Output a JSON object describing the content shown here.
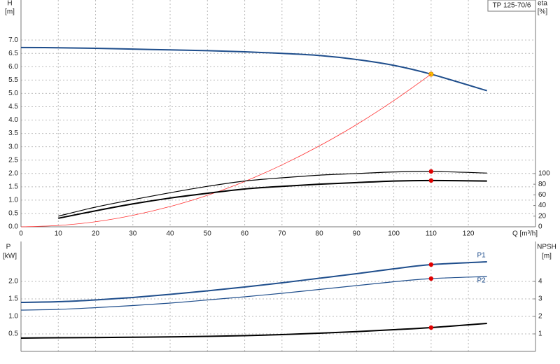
{
  "chart_data": [
    {
      "type": "line",
      "title": "TP 125-70/6",
      "xlabel": "Q [m³/h]",
      "ylabel": [
        "H",
        "[m]"
      ],
      "y2label": [
        "eta",
        "[%]"
      ],
      "x": [
        0,
        10,
        20,
        30,
        40,
        50,
        60,
        70,
        80,
        90,
        100,
        110,
        125
      ],
      "xlim": [
        0,
        138
      ],
      "xticks": [
        0,
        10,
        20,
        30,
        40,
        50,
        60,
        70,
        80,
        90,
        100,
        110,
        120
      ],
      "ylim": [
        0,
        8.5
      ],
      "yticks": [
        {
          "value": 0,
          "label": "0.0"
        },
        0.5,
        {
          "value": 1,
          "label": "1.0"
        },
        1.5,
        {
          "value": 2,
          "label": "2.0"
        },
        2.5,
        {
          "value": 3,
          "label": "3.0"
        },
        3.5,
        {
          "value": 4,
          "label": "4.0"
        },
        4.5,
        {
          "value": 5,
          "label": "5.0"
        },
        5.5,
        {
          "value": 6,
          "label": "6.0"
        },
        6.5,
        {
          "value": 7,
          "label": "7.0"
        }
      ],
      "y2lim": [
        0,
        426
      ],
      "y2ticks": [
        0,
        20,
        40,
        60,
        80,
        100
      ],
      "grid": true,
      "marker_x": 110,
      "series": [
        {
          "color": "#1f4e8c",
          "width": 2,
          "marker": "#f5c400",
          "values": [
            6.72,
            6.71,
            6.69,
            6.66,
            6.63,
            6.6,
            6.56,
            6.5,
            6.42,
            6.27,
            6.05,
            5.72,
            5.1
          ]
        },
        {
          "color": "#ff3030",
          "width": 0.8,
          "values": [
            0,
            0.05,
            0.19,
            0.43,
            0.76,
            1.18,
            1.7,
            2.32,
            3.03,
            3.83,
            4.73,
            5.72,
            null
          ]
        },
        {
          "color": "#000000",
          "width": 1.2,
          "axis": "y2",
          "marker": "#e00000",
          "values": [
            null,
            20,
            37,
            51,
            64,
            76,
            86,
            92,
            97,
            100,
            103,
            104,
            101
          ]
        },
        {
          "color": "#000000",
          "width": 2,
          "axis": "y2",
          "marker": "#e00000",
          "values": [
            null,
            16,
            30,
            43,
            54,
            63,
            71,
            76,
            80,
            83,
            86,
            87,
            86
          ]
        }
      ]
    },
    {
      "type": "line",
      "ylabel": [
        "P",
        "[kW]"
      ],
      "y2label": [
        "NPSH",
        "[m]"
      ],
      "x": [
        0,
        10,
        20,
        30,
        40,
        50,
        60,
        70,
        80,
        90,
        100,
        110,
        125
      ],
      "xlim": [
        0,
        138
      ],
      "ylim": [
        0,
        3.14
      ],
      "yticks": [
        0.5,
        {
          "value": 1,
          "label": "1.0"
        },
        1.5,
        {
          "value": 2,
          "label": "2.0"
        }
      ],
      "y2lim": [
        0,
        6.28
      ],
      "y2ticks": [
        1,
        2,
        3,
        4
      ],
      "grid": true,
      "marker_x": 110,
      "series": [
        {
          "name": "P1",
          "color": "#1f4e8c",
          "width": 2,
          "marker": "#e00000",
          "values": [
            1.4,
            1.42,
            1.47,
            1.54,
            1.63,
            1.73,
            1.84,
            1.96,
            2.09,
            2.22,
            2.36,
            2.48,
            2.56
          ]
        },
        {
          "name": "P2",
          "color": "#1f4e8c",
          "width": 1.2,
          "marker": "#e00000",
          "values": [
            1.18,
            1.2,
            1.25,
            1.31,
            1.38,
            1.47,
            1.56,
            1.66,
            1.77,
            1.88,
            1.99,
            2.08,
            2.14
          ]
        },
        {
          "color": "#000000",
          "width": 2,
          "axis": "y2",
          "marker": "#e00000",
          "values": [
            0.76,
            0.78,
            0.79,
            0.81,
            0.83,
            0.86,
            0.9,
            0.96,
            1.04,
            1.13,
            1.24,
            1.36,
            1.6
          ]
        }
      ]
    }
  ]
}
